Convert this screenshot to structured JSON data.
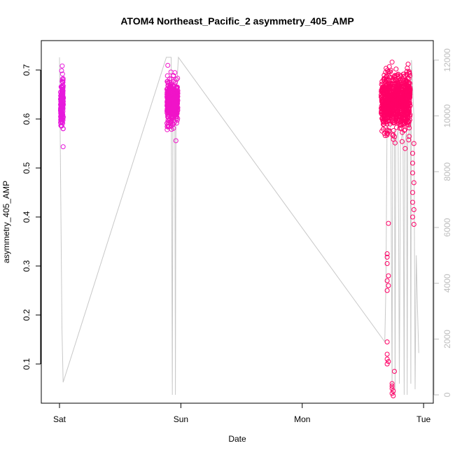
{
  "chart_data": {
    "type": "scatter",
    "title": "ATOM4 Northeast_Pacific_2 asymmetry_405_AMP",
    "xlabel": "Date",
    "ylabel": "asymmetry_405_AMP",
    "x_ticks": [
      "Sat",
      "Sun",
      "Mon",
      "Tue"
    ],
    "x_ticks_days": [
      0,
      1,
      2,
      3
    ],
    "xlim_days": [
      -0.15,
      3.08
    ],
    "ylim": [
      0.02,
      0.76
    ],
    "y_ticks": [
      "0.1",
      "0.2",
      "0.3",
      "0.4",
      "0.5",
      "0.6",
      "0.7"
    ],
    "y2lim": [
      -300,
      12700
    ],
    "y2_ticks": [
      "0",
      "2000",
      "4000",
      "6000",
      "8000",
      "10000",
      "12000"
    ],
    "colors": {
      "early_points": "#e619dc",
      "late_points": "#ff0066",
      "secondary_line": "#c8c8c8",
      "axis": "#000000",
      "right_axis": "#bdbdbd"
    },
    "series": [
      {
        "clusters": [
          {
            "x_center": 0.02,
            "x_spread": 0.012,
            "y_mean": 0.63,
            "y_sd": 0.025,
            "y_min": 0.54,
            "y_max": 0.71,
            "n": 160,
            "color": "#e619dc"
          },
          {
            "x_center": 0.93,
            "x_spread": 0.045,
            "y_mean": 0.635,
            "y_sd": 0.022,
            "y_min": 0.55,
            "y_max": 0.73,
            "n": 500,
            "color": "#f014c8"
          },
          {
            "x_center": 2.77,
            "x_spread": 0.12,
            "y_mean": 0.635,
            "y_sd": 0.028,
            "y_min": 0.53,
            "y_max": 0.73,
            "n": 900,
            "color": "#ff0066"
          }
        ],
        "outliers": [
          {
            "x": 2.71,
            "y": 0.387
          },
          {
            "x": 2.7,
            "y": 0.325
          },
          {
            "x": 2.7,
            "y": 0.318
          },
          {
            "x": 2.7,
            "y": 0.305
          },
          {
            "x": 2.71,
            "y": 0.28
          },
          {
            "x": 2.7,
            "y": 0.27
          },
          {
            "x": 2.71,
            "y": 0.26
          },
          {
            "x": 2.7,
            "y": 0.25
          },
          {
            "x": 2.7,
            "y": 0.145
          },
          {
            "x": 2.7,
            "y": 0.12
          },
          {
            "x": 2.7,
            "y": 0.11
          },
          {
            "x": 2.71,
            "y": 0.105
          },
          {
            "x": 2.7,
            "y": 0.1
          },
          {
            "x": 2.76,
            "y": 0.085
          },
          {
            "x": 2.74,
            "y": 0.06
          },
          {
            "x": 2.74,
            "y": 0.055
          },
          {
            "x": 2.74,
            "y": 0.05
          },
          {
            "x": 2.75,
            "y": 0.045
          },
          {
            "x": 2.74,
            "y": 0.04
          },
          {
            "x": 2.75,
            "y": 0.035
          },
          {
            "x": 2.91,
            "y": 0.51
          },
          {
            "x": 2.91,
            "y": 0.49
          },
          {
            "x": 2.92,
            "y": 0.47
          },
          {
            "x": 2.91,
            "y": 0.45
          },
          {
            "x": 2.91,
            "y": 0.43
          },
          {
            "x": 2.92,
            "y": 0.415
          },
          {
            "x": 2.91,
            "y": 0.4
          },
          {
            "x": 2.92,
            "y": 0.385
          },
          {
            "x": 2.92,
            "y": 0.55
          },
          {
            "x": 2.91,
            "y": 0.53
          }
        ]
      }
    ],
    "secondary_series": {
      "axis": "right",
      "points": [
        [
          0.0,
          12100
        ],
        [
          0.02,
          2400
        ],
        [
          0.03,
          450
        ],
        [
          0.88,
          12100
        ],
        [
          0.92,
          12100
        ],
        [
          0.93,
          0
        ],
        [
          0.935,
          10600
        ],
        [
          0.95,
          10600
        ],
        [
          0.955,
          0
        ],
        [
          0.96,
          10600
        ],
        [
          0.98,
          12100
        ],
        [
          2.68,
          1900
        ],
        [
          2.69,
          4000
        ],
        [
          2.7,
          10500
        ],
        [
          2.73,
          9500
        ],
        [
          2.74,
          0
        ],
        [
          2.745,
          9000
        ],
        [
          2.76,
          9500
        ],
        [
          2.765,
          0
        ],
        [
          2.77,
          9000
        ],
        [
          2.79,
          9500
        ],
        [
          2.8,
          400
        ],
        [
          2.81,
          9000
        ],
        [
          2.83,
          9500
        ],
        [
          2.84,
          0
        ],
        [
          2.845,
          9000
        ],
        [
          2.86,
          9500
        ],
        [
          2.865,
          0
        ],
        [
          2.87,
          9000
        ],
        [
          2.89,
          10000
        ],
        [
          2.895,
          400
        ],
        [
          2.9,
          12000
        ],
        [
          2.92,
          10000
        ],
        [
          2.93,
          200
        ],
        [
          2.94,
          5000
        ],
        [
          2.95,
          3000
        ],
        [
          2.96,
          1500
        ]
      ]
    }
  }
}
